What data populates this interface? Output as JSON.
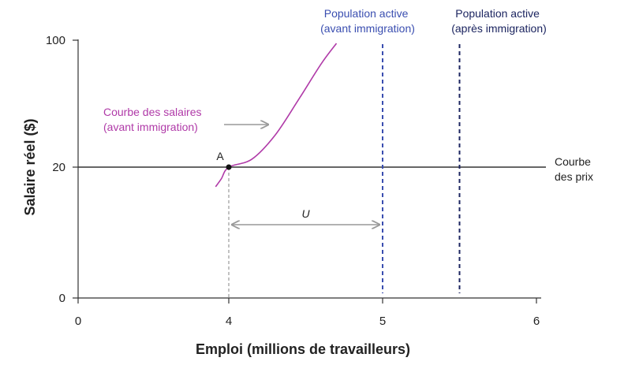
{
  "chart_data": {
    "type": "line",
    "xlabel": "Emploi (millions de travailleurs)",
    "ylabel": "Salaire réel ($)",
    "x_ticks": [
      "0",
      "4",
      "5",
      "6"
    ],
    "y_ticks": [
      "0",
      "20",
      "100"
    ],
    "broken_axis": true,
    "grid": false,
    "wage_curve": {
      "name": "Courbe des salaires (avant immigration)",
      "label_lines": [
        "Courbe des salaires",
        "(avant immigration)"
      ],
      "color": "#b03aa8",
      "points": [
        [
          3.65,
          17
        ],
        [
          3.8,
          18.2
        ],
        [
          4.0,
          20
        ],
        [
          4.15,
          25
        ],
        [
          4.3,
          40
        ],
        [
          4.45,
          62
        ],
        [
          4.6,
          85
        ],
        [
          4.7,
          98
        ]
      ]
    },
    "price_curve": {
      "name": "Courbe des prix",
      "label_lines": [
        "Courbe",
        "des prix"
      ],
      "color": "#333333",
      "y": 20
    },
    "labour_force_before": {
      "label_lines": [
        "Population active",
        "(avant immigration)"
      ],
      "color": "#3a4eb0",
      "x": 5.0
    },
    "labour_force_after": {
      "label_lines": [
        "Population active",
        "(après immigration)"
      ],
      "color": "#1c2560",
      "x": 5.5
    },
    "point_a": {
      "label": "A",
      "x": 4.0,
      "y": 20
    },
    "unemployment": {
      "label": "U",
      "from": 4.0,
      "to": 5.0,
      "y": 10
    }
  }
}
